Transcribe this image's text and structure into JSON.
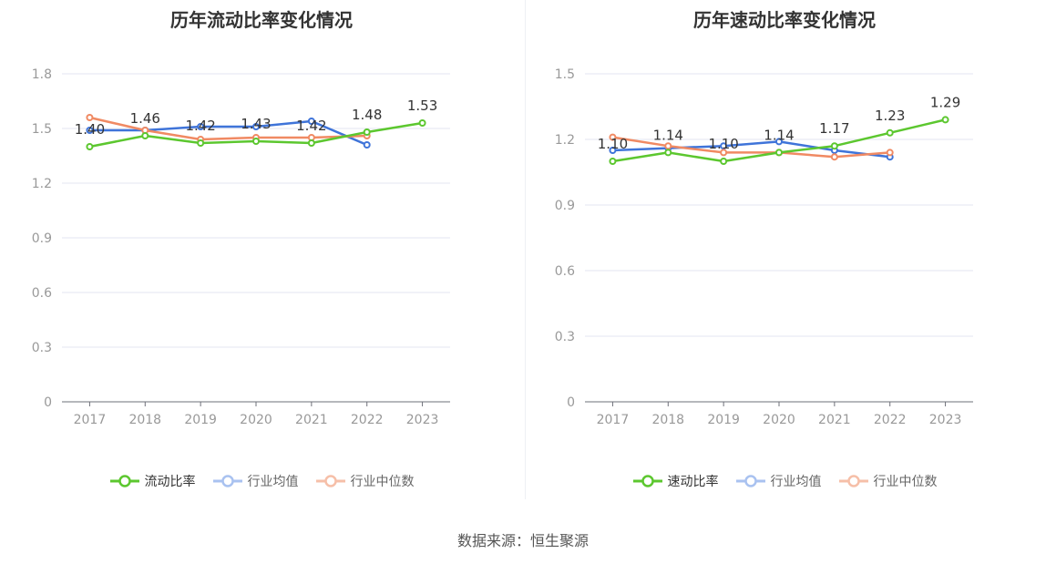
{
  "colors": {
    "main": "#5cc72f",
    "avg": "#3f74d9",
    "median": "#f08a63",
    "grid": "#e3e6f0",
    "axis": "#6e7079",
    "tick": "#999999",
    "label": "#333333"
  },
  "source": "数据来源：恒生聚源",
  "chart_data": [
    {
      "type": "line",
      "title": "历年流动比率变化情况",
      "categories": [
        "2017",
        "2018",
        "2019",
        "2020",
        "2021",
        "2022",
        "2023"
      ],
      "ylim": [
        0,
        1.8
      ],
      "yticks": [
        0,
        0.3,
        0.6,
        0.9,
        1.2,
        1.5,
        1.8
      ],
      "ytick_labels": [
        "0",
        "0.3",
        "0.6",
        "0.9",
        "1.2",
        "1.5",
        "1.8"
      ],
      "grid": true,
      "legend_position": "bottom",
      "series": [
        {
          "name": "流动比率",
          "key": "main",
          "values": [
            1.4,
            1.46,
            1.42,
            1.43,
            1.42,
            1.48,
            1.53
          ],
          "labels": [
            "1.40",
            "1.46",
            "1.42",
            "1.43",
            "1.42",
            "1.48",
            "1.53"
          ]
        },
        {
          "name": "行业均值",
          "key": "avg",
          "values": [
            1.49,
            1.49,
            1.51,
            1.51,
            1.54,
            1.41,
            null
          ]
        },
        {
          "name": "行业中位数",
          "key": "median",
          "values": [
            1.56,
            1.49,
            1.44,
            1.45,
            1.45,
            1.46,
            null
          ]
        }
      ]
    },
    {
      "type": "line",
      "title": "历年速动比率变化情况",
      "categories": [
        "2017",
        "2018",
        "2019",
        "2020",
        "2021",
        "2022",
        "2023"
      ],
      "ylim": [
        0,
        1.5
      ],
      "yticks": [
        0,
        0.3,
        0.6,
        0.9,
        1.2,
        1.5
      ],
      "ytick_labels": [
        "0",
        "0.3",
        "0.6",
        "0.9",
        "1.2",
        "1.5"
      ],
      "grid": true,
      "legend_position": "bottom",
      "series": [
        {
          "name": "速动比率",
          "key": "main",
          "values": [
            1.1,
            1.14,
            1.1,
            1.14,
            1.17,
            1.23,
            1.29
          ],
          "labels": [
            "1.10",
            "1.14",
            "1.10",
            "1.14",
            "1.17",
            "1.23",
            "1.29"
          ]
        },
        {
          "name": "行业均值",
          "key": "avg",
          "values": [
            1.15,
            1.16,
            1.17,
            1.19,
            1.15,
            1.12,
            null
          ]
        },
        {
          "name": "行业中位数",
          "key": "median",
          "values": [
            1.21,
            1.17,
            1.14,
            1.14,
            1.12,
            1.14,
            null
          ]
        }
      ]
    }
  ]
}
